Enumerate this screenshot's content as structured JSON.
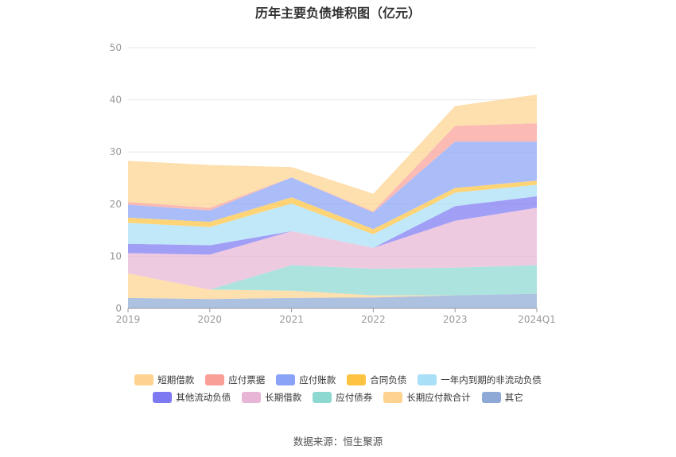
{
  "chart_data": {
    "type": "area",
    "title": "历年主要负债堆积图（亿元）",
    "categories": [
      "2019",
      "2020",
      "2021",
      "2022",
      "2023",
      "2024Q1"
    ],
    "ylim": [
      0,
      50
    ],
    "yticks": [
      0,
      10,
      20,
      30,
      40,
      50
    ],
    "grid": true,
    "legend_position": "bottom",
    "series": [
      {
        "name": "其它",
        "color": "#8ea9d6",
        "values": [
          2.0,
          1.8,
          2.0,
          2.1,
          2.5,
          2.8
        ]
      },
      {
        "name": "长期应付款合计",
        "color": "#fed38f",
        "values": [
          4.7,
          1.8,
          1.4,
          0.4,
          0.0,
          0.0
        ]
      },
      {
        "name": "应付债券",
        "color": "#8dd8d1",
        "values": [
          0.0,
          0.0,
          4.9,
          5.1,
          5.3,
          5.5
        ]
      },
      {
        "name": "长期借款",
        "color": "#e7b5d6",
        "values": [
          3.9,
          6.7,
          6.5,
          4.0,
          9.0,
          11.0
        ]
      },
      {
        "name": "其他流动负债",
        "color": "#7d79f2",
        "values": [
          1.8,
          1.8,
          0.0,
          0.0,
          2.8,
          2.2
        ]
      },
      {
        "name": "一年内到期的非流动负债",
        "color": "#a9dff7",
        "values": [
          4.0,
          3.5,
          5.3,
          2.6,
          2.6,
          2.2
        ]
      },
      {
        "name": "合同负债",
        "color": "#fec342",
        "values": [
          1.0,
          1.0,
          1.2,
          1.0,
          0.9,
          0.8
        ]
      },
      {
        "name": "应付账款",
        "color": "#8aa3f7",
        "values": [
          2.5,
          2.2,
          3.8,
          3.2,
          8.9,
          7.5
        ]
      },
      {
        "name": "应付票据",
        "color": "#fa9f97",
        "values": [
          0.5,
          0.5,
          0.0,
          0.2,
          3.0,
          3.5
        ]
      },
      {
        "name": "短期借款",
        "color": "#fed38f",
        "values": [
          7.9,
          8.2,
          2.0,
          3.4,
          3.8,
          5.5
        ]
      }
    ],
    "legend_rows": [
      [
        "短期借款",
        "应付票据",
        "应付账款",
        "合同负债",
        "一年内到期的非流动负债"
      ],
      [
        "其他流动负债",
        "长期借款",
        "应付债券",
        "长期应付款合计",
        "其它"
      ]
    ],
    "source": "数据来源：恒生聚源"
  }
}
